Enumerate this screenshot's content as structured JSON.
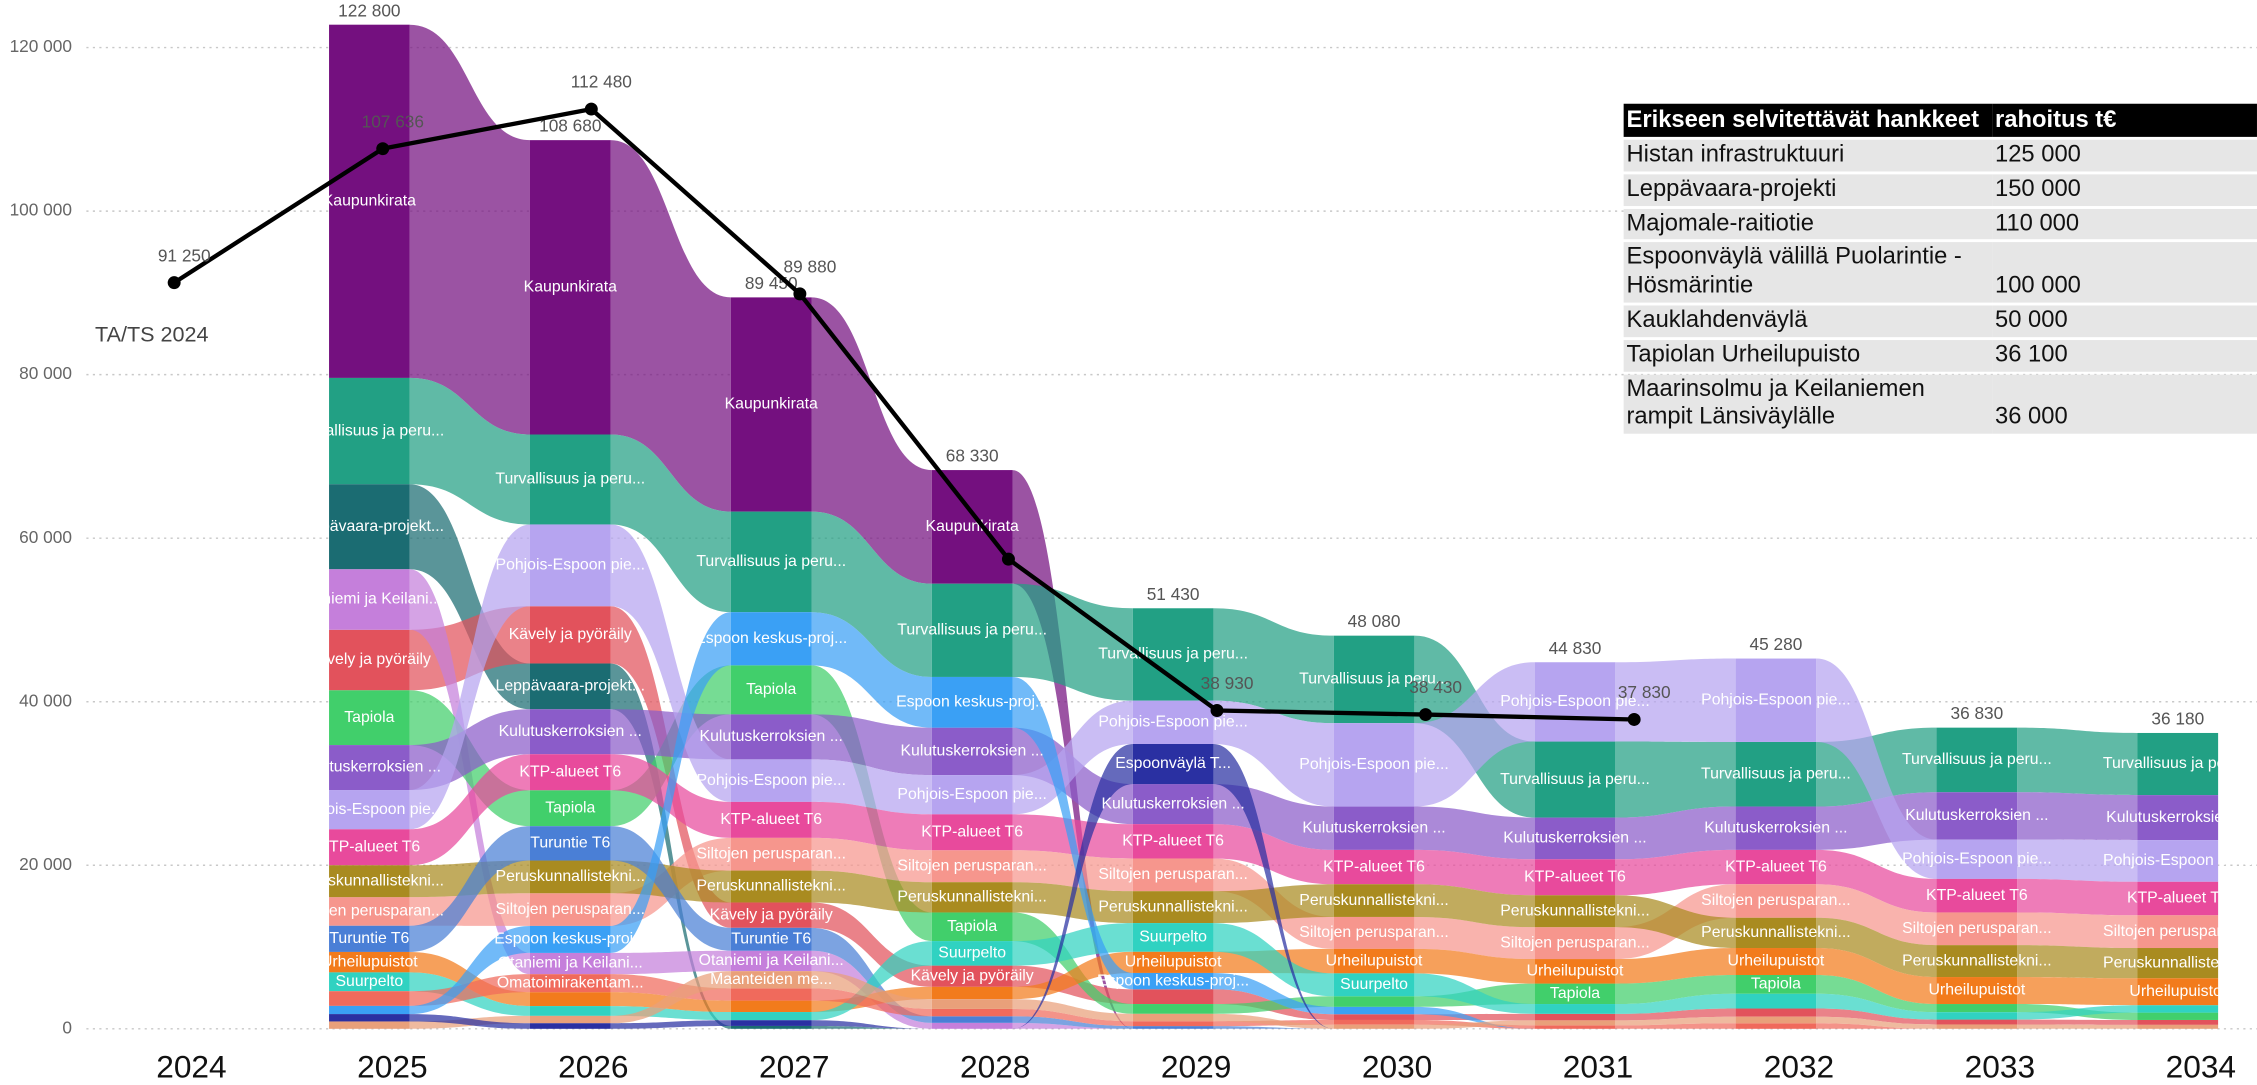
{
  "chart_data": {
    "type": "ribbon",
    "categories": [
      "2024",
      "2025",
      "2026",
      "2027",
      "2028",
      "2029",
      "2030",
      "2031",
      "2032",
      "2033",
      "2034"
    ],
    "ylim": [
      0,
      123000
    ],
    "yticks": [
      0,
      {
        "value": 20000,
        "label": "20 000"
      },
      {
        "value": 40000,
        "label": "40 000"
      },
      {
        "value": 60000,
        "label": "60 000"
      },
      {
        "value": 80000,
        "label": "80 000"
      },
      {
        "value": 100000,
        "label": "100 000"
      },
      {
        "value": 120000,
        "label": "120 000"
      }
    ],
    "grid": true,
    "series": [
      {
        "name": "Kaupunkirata",
        "color": "#74107f",
        "values": [
          null,
          43200,
          36000,
          26200,
          13900,
          0,
          0,
          0,
          0,
          0,
          0
        ]
      },
      {
        "name": "Turvallisuus ja peru...",
        "color": "#22a084",
        "values": [
          null,
          13000,
          11000,
          12300,
          11400,
          11300,
          10700,
          9300,
          7900,
          7900,
          7600
        ]
      },
      {
        "name": "Leppävaara-projekt...",
        "color": "#1b6c72",
        "values": [
          null,
          10400,
          5600,
          350,
          0,
          0,
          0,
          0,
          0,
          0,
          0
        ]
      },
      {
        "name": "Kävely ja pyöräily",
        "color": "#e2525c",
        "values": [
          null,
          7400,
          7000,
          3100,
          2600,
          1800,
          700,
          800,
          1000,
          600,
          600
        ]
      },
      {
        "name": "Otaniemi ja Keilani...",
        "color": "#c57fdb",
        "values": [
          null,
          7400,
          2600,
          2500,
          730,
          0,
          0,
          0,
          0,
          0,
          0
        ]
      },
      {
        "name": "Tapiola",
        "color": "#41cf6b",
        "values": [
          null,
          6700,
          4400,
          6000,
          3500,
          1200,
          1300,
          2500,
          2300,
          1000,
          900
        ]
      },
      {
        "name": "Kulutuskerroksien ...",
        "color": "#8b5cc9",
        "values": [
          null,
          5500,
          5500,
          5500,
          5800,
          4900,
          5300,
          5100,
          5300,
          5800,
          5500
        ]
      },
      {
        "name": "Pohjois-Espoon pie...",
        "color": "#b6a4f0",
        "values": [
          null,
          4800,
          10000,
          5200,
          4800,
          5300,
          10200,
          9700,
          10200,
          4800,
          5100
        ]
      },
      {
        "name": "KTP-alueet T6",
        "color": "#e84a9c",
        "values": [
          null,
          4400,
          4400,
          4400,
          4400,
          4200,
          4200,
          4400,
          4200,
          4100,
          4100
        ]
      },
      {
        "name": "Siltojen perusparan...",
        "color": "#f6968d",
        "values": [
          null,
          3500,
          4000,
          4000,
          3900,
          4000,
          3900,
          3900,
          4100,
          4000,
          4000
        ]
      },
      {
        "name": "Peruskunnallistekni...",
        "color": "#a98b20",
        "values": [
          null,
          3900,
          4000,
          3900,
          3700,
          3900,
          4000,
          3900,
          3700,
          3900,
          3700
        ]
      },
      {
        "name": "Turuntie T6",
        "color": "#4a7fd6",
        "values": [
          null,
          3200,
          4200,
          2800,
          800,
          330,
          0,
          0,
          0,
          0,
          0
        ]
      },
      {
        "name": "Urheilupuistot",
        "color": "#f27b1c",
        "values": [
          null,
          2500,
          1700,
          1400,
          1500,
          2600,
          3000,
          3000,
          3300,
          3300,
          3300
        ]
      },
      {
        "name": "Suurpelto",
        "color": "#30d2c1",
        "values": [
          null,
          2300,
          1200,
          1000,
          3000,
          3500,
          2800,
          1200,
          1800,
          900,
          900
        ]
      },
      {
        "name": "Omatoimirakentam...",
        "color": "#f06a5c",
        "values": [
          null,
          1800,
          2200,
          1500,
          900,
          600,
          580,
          430,
          680,
          0,
          0
        ]
      },
      {
        "name": "Espoon keskus-proj...",
        "color": "#3aa0f5",
        "values": [
          null,
          1000,
          3300,
          6500,
          6200,
          2000,
          900,
          0,
          0,
          0,
          0
        ]
      },
      {
        "name": "Maanteiden me...",
        "color": "#e9a07a",
        "values": [
          null,
          900,
          900,
          2100,
          1200,
          900,
          500,
          600,
          800,
          530,
          480
        ]
      },
      {
        "name": "Espoonväylä T...",
        "color": "#2a30a2",
        "values": [
          null,
          900,
          680,
          700,
          0,
          4900,
          0,
          0,
          0,
          0,
          0
        ]
      }
    ],
    "totals": [
      null,
      122800,
      108680,
      89450,
      68330,
      51430,
      48080,
      44830,
      45280,
      36830,
      36180
    ],
    "total_labels": [
      null,
      "122 800",
      "108 680",
      "89 450",
      "68 330",
      "51 430",
      "48 080",
      "44 830",
      "45 280",
      "36 830",
      "36 180"
    ],
    "line": {
      "name": "TA/TS 2024",
      "color": "#000000",
      "values": [
        91250,
        107636,
        112480,
        89880,
        57440,
        38930,
        38430,
        37830,
        null,
        null,
        null
      ],
      "value_labels": [
        "91 250",
        "107 636",
        "112 480",
        "89 880",
        null,
        "38 930",
        "38 430",
        "37 830",
        null,
        null,
        null
      ]
    }
  },
  "table": {
    "header": [
      "Erikseen selvitettävät hankkeet",
      "rahoitus t€"
    ],
    "rows": [
      [
        "Histan infrastruktuuri",
        "125 000"
      ],
      [
        "Leppävaara-projekti",
        "150 000"
      ],
      [
        "Majomale-raitiotie",
        "110 000"
      ],
      [
        "Espoonväylä välillä Puolarintie - Hösmärintie",
        "100 000"
      ],
      [
        "Kauklahdenväylä",
        "50 000"
      ],
      [
        "Tapiolan Urheilupuisto",
        "36 100"
      ],
      [
        "Maarinsolmu ja Keilaniemen rampit Länsiväylälle",
        "36 000"
      ]
    ]
  }
}
